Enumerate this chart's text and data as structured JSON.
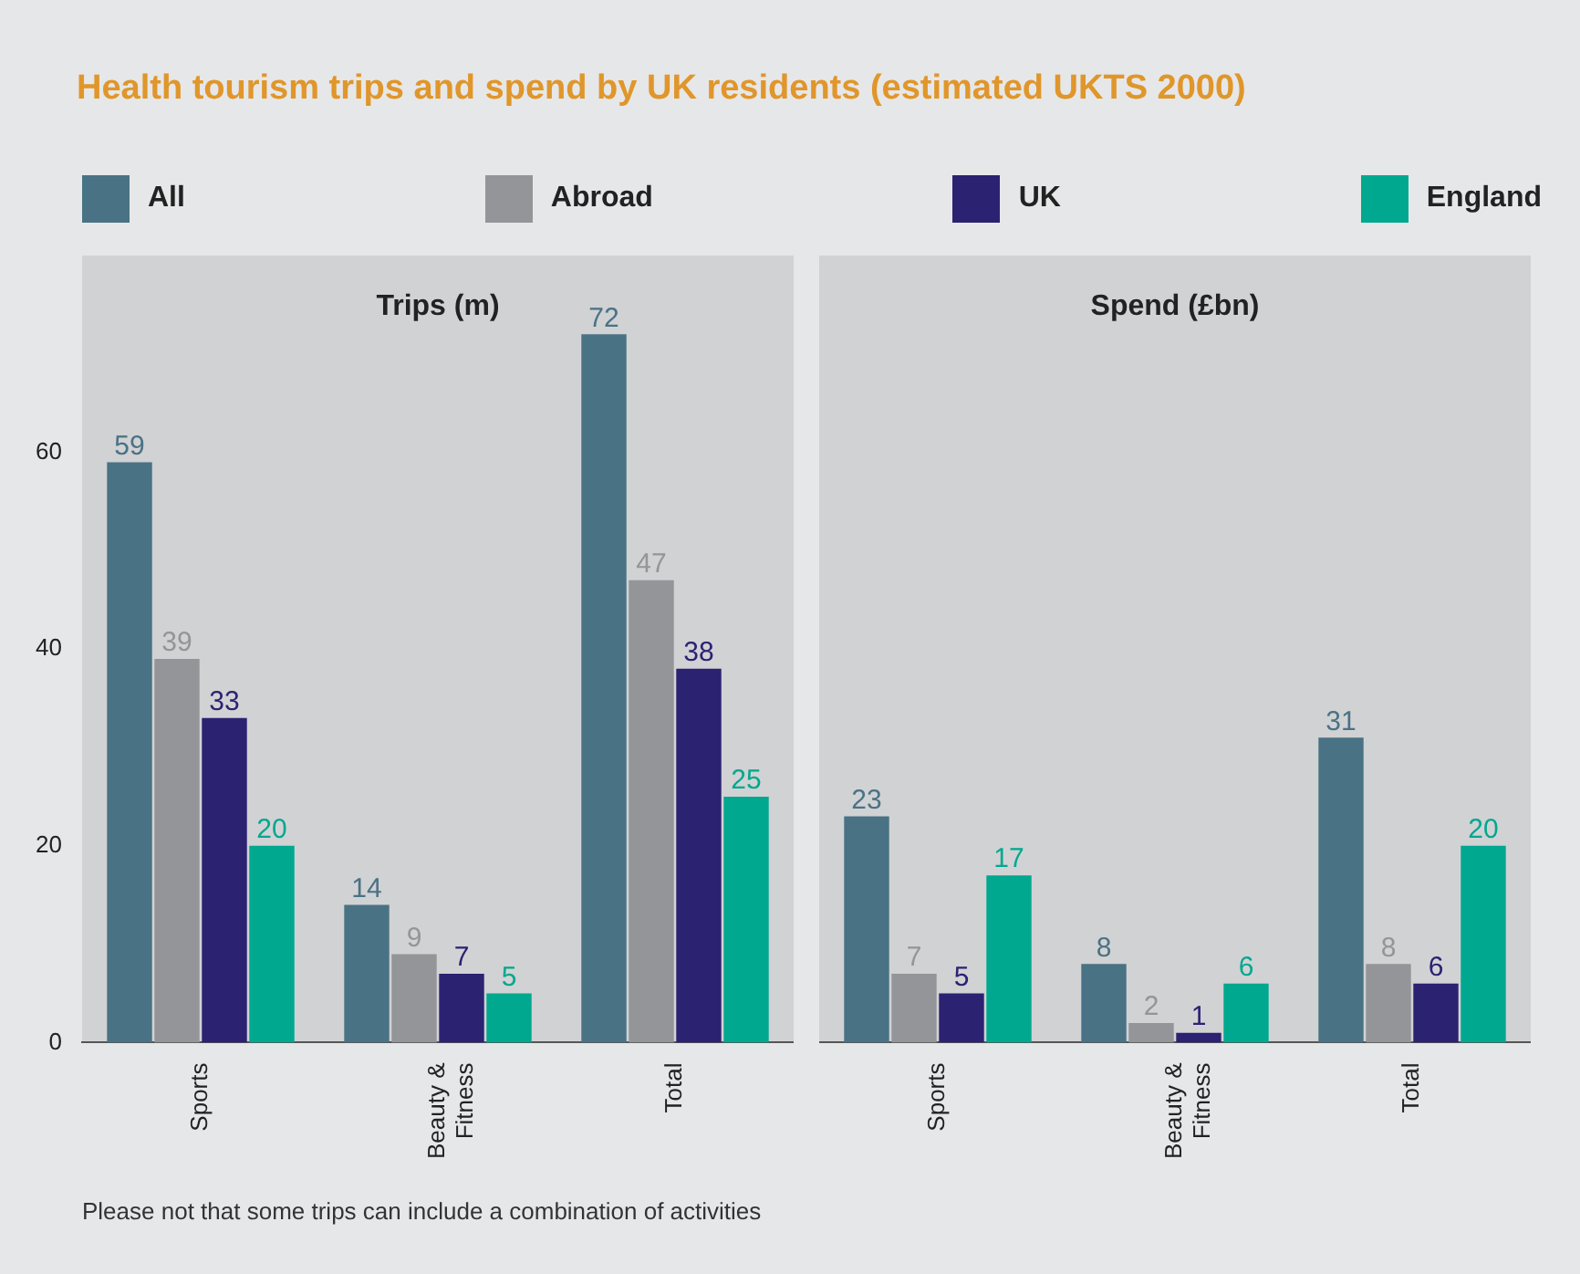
{
  "chart_data": [
    {
      "type": "bar",
      "title": "Health tourism trips and spend by UK residents (estimated UKTS 2000)",
      "subtitle": "Trips (m)",
      "categories": [
        "Sports",
        "Beauty & Fitness",
        "Total"
      ],
      "series": [
        {
          "name": "All",
          "color": "#4a7285",
          "values": [
            59,
            14,
            72
          ]
        },
        {
          "name": "Abroad",
          "color": "#949598",
          "values": [
            39,
            9,
            47
          ]
        },
        {
          "name": "UK",
          "color": "#2b2272",
          "values": [
            33,
            7,
            38
          ]
        },
        {
          "name": "England",
          "color": "#00a88f",
          "values": [
            20,
            5,
            25
          ]
        }
      ],
      "ylim": [
        0,
        80
      ],
      "yticks": [
        0,
        20,
        40,
        60
      ],
      "data_labels": true,
      "legend": "top",
      "annotations": [
        "Please not that some trips can include a combination of activities"
      ]
    },
    {
      "type": "bar",
      "subtitle": "Spend (£bn)",
      "categories": [
        "Sports",
        "Beauty & Fitness",
        "Total"
      ],
      "series": [
        {
          "color": "#4a7285",
          "values": [
            23,
            8,
            31
          ]
        },
        {
          "color": "#949598",
          "values": [
            7,
            2,
            8
          ]
        },
        {
          "color": "#2b2272",
          "values": [
            5,
            1,
            6
          ]
        },
        {
          "color": "#00a88f",
          "values": [
            17,
            6,
            20
          ]
        }
      ],
      "ylim": [
        0,
        80
      ],
      "yticks": [
        0,
        20,
        40,
        60
      ],
      "data_labels": true,
      "tick_labels": "x"
    }
  ]
}
